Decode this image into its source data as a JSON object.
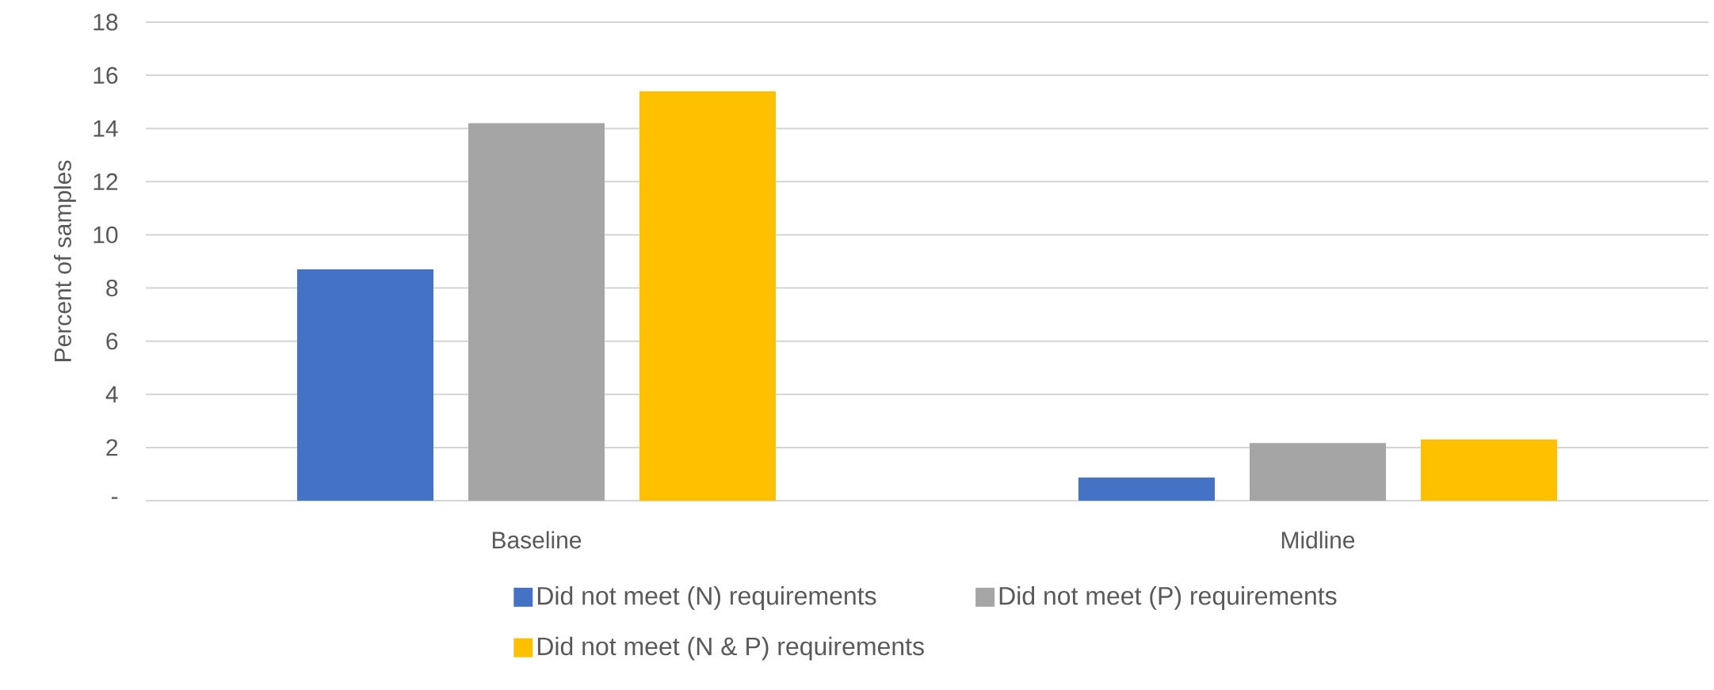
{
  "chart_data": {
    "type": "bar",
    "ylabel": "Percent of samples",
    "categories": [
      "Baseline",
      "Midline"
    ],
    "series": [
      {
        "name": "Did not meet (N) requirements",
        "color": "#4472c4",
        "values": [
          8.7,
          0.87
        ]
      },
      {
        "name": "Did not meet (P) requirements",
        "color": "#a5a5a5",
        "values": [
          14.2,
          2.17
        ]
      },
      {
        "name": "Did not meet (N & P) requirements",
        "color": "#ffc000",
        "values": [
          15.4,
          2.3
        ]
      }
    ],
    "ylim": [
      0,
      18
    ],
    "yticks": [
      {
        "value": 0,
        "label": "-"
      },
      2,
      4,
      6,
      8,
      10,
      12,
      14,
      16,
      18
    ],
    "grid": "y",
    "legend": "bottom"
  }
}
